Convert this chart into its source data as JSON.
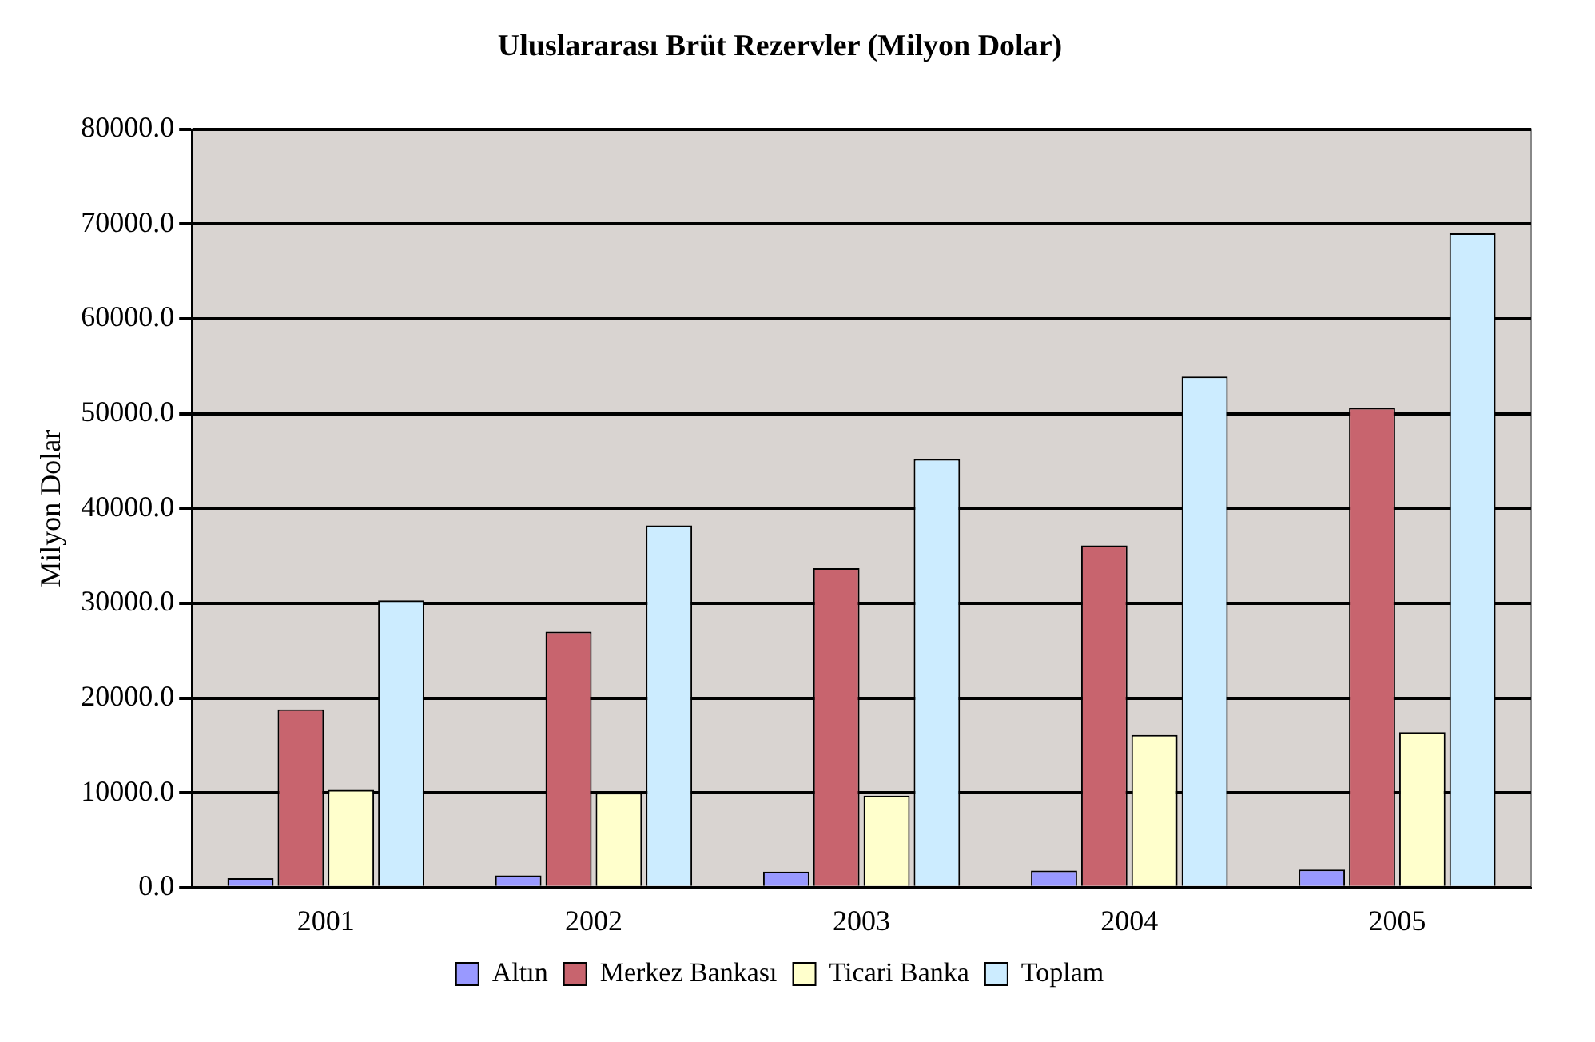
{
  "chart_data": {
    "type": "bar",
    "title": "Uluslararası Brüt Rezervler (Milyon Dolar)",
    "ylabel": "Milyon Dolar",
    "categories": [
      "2001",
      "2002",
      "2003",
      "2004",
      "2005"
    ],
    "series": [
      {
        "name": "Altın",
        "color": "#9999ff",
        "values": [
          1000,
          1300,
          1700,
          1800,
          1900
        ]
      },
      {
        "name": "Merkez Bankası",
        "color": "#c8646e",
        "values": [
          18800,
          27000,
          33700,
          36100,
          50600
        ]
      },
      {
        "name": "Ticari Banka",
        "color": "#ffffcc",
        "values": [
          10300,
          10000,
          9700,
          16100,
          16400
        ]
      },
      {
        "name": "Toplam",
        "color": "#ccecff",
        "values": [
          30300,
          38200,
          45200,
          53900,
          69000
        ]
      }
    ],
    "ylim": [
      0,
      80000
    ],
    "yticks": [
      {
        "value": 0,
        "label": "0.0"
      },
      {
        "value": 10000,
        "label": "10000.0"
      },
      {
        "value": 20000,
        "label": "20000.0"
      },
      {
        "value": 30000,
        "label": "30000.0"
      },
      {
        "value": 40000,
        "label": "40000.0"
      },
      {
        "value": 50000,
        "label": "50000.0"
      },
      {
        "value": 60000,
        "label": "60000.0"
      },
      {
        "value": 70000,
        "label": "70000.0"
      },
      {
        "value": 80000,
        "label": "80000.0"
      }
    ],
    "grid": "y",
    "legend": "bottom"
  }
}
